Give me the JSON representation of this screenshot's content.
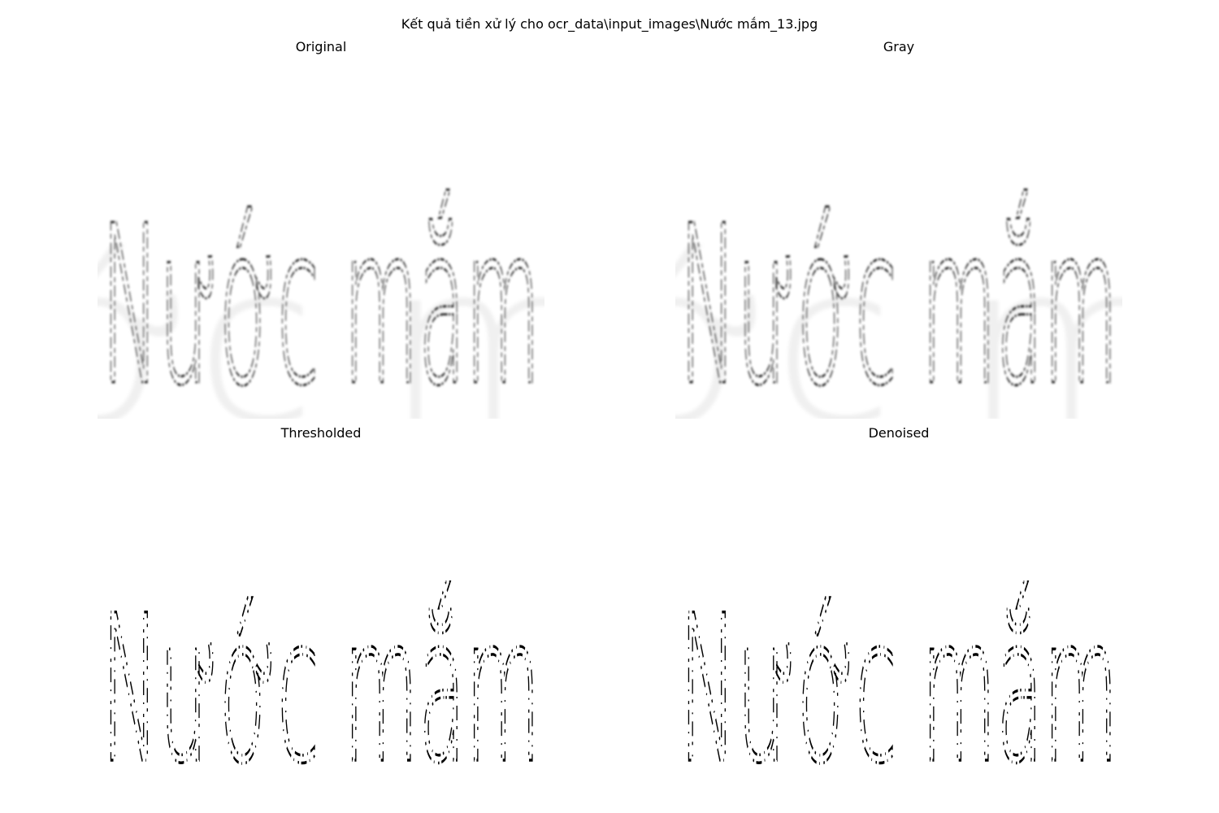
{
  "figure": {
    "title": "Kết quả tiền xử lý cho ocr_data\\input_images\\Nước mắm_13.jpg"
  },
  "panels": [
    {
      "id": "original",
      "title": "Original",
      "text": "Nước mắm"
    },
    {
      "id": "gray",
      "title": "Gray",
      "text": "Nước mắm"
    },
    {
      "id": "thresholded",
      "title": "Thresholded",
      "text": "Nước mắm"
    },
    {
      "id": "denoised",
      "title": "Denoised",
      "text": "Nước mắm"
    }
  ]
}
